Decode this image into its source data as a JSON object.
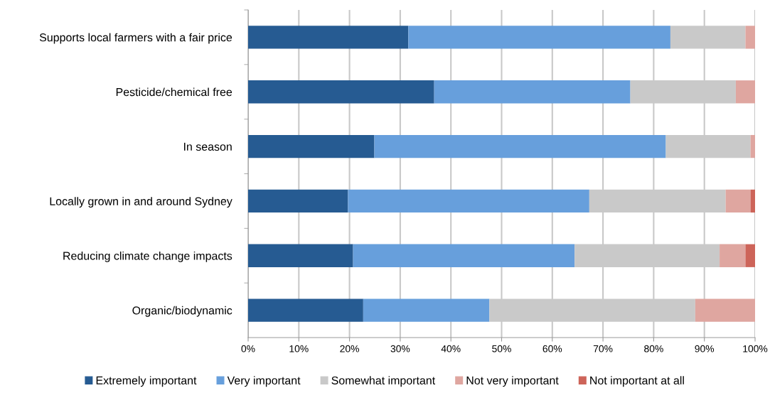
{
  "chart_data": {
    "type": "bar",
    "orientation": "horizontal",
    "stacked": true,
    "categories": [
      "Supports local farmers with a fair price",
      "Pesticide/chemical free",
      "In season",
      "Locally grown in and around Sydney",
      "Reducing climate change impacts",
      "Organic/biodynamic"
    ],
    "series": [
      {
        "name": "Extremely important",
        "color": "#265b92",
        "values": [
          31.6,
          36.7,
          24.9,
          19.7,
          20.7,
          22.7
        ]
      },
      {
        "name": "Very important",
        "color": "#679fdc",
        "values": [
          51.7,
          38.7,
          57.5,
          47.6,
          43.7,
          24.9
        ]
      },
      {
        "name": "Somewhat important",
        "color": "#c9c9c9",
        "values": [
          14.8,
          20.8,
          16.7,
          26.9,
          28.6,
          40.6
        ]
      },
      {
        "name": "Not very important",
        "color": "#dfa6a0",
        "values": [
          1.9,
          3.8,
          0.9,
          4.9,
          5.1,
          11.8
        ]
      },
      {
        "name": "Not important at all",
        "color": "#cd6459",
        "values": [
          0,
          0,
          0,
          0.9,
          1.9,
          0
        ]
      }
    ],
    "xlim": [
      0,
      100
    ],
    "xticks": [
      {
        "value": 0,
        "label": "0%"
      },
      {
        "value": 10,
        "label": "10%"
      },
      {
        "value": 20,
        "label": "20%"
      },
      {
        "value": 30,
        "label": "30%"
      },
      {
        "value": 40,
        "label": "40%"
      },
      {
        "value": 50,
        "label": "50%"
      },
      {
        "value": 60,
        "label": "60%"
      },
      {
        "value": 70,
        "label": "70%"
      },
      {
        "value": 80,
        "label": "80%"
      },
      {
        "value": 90,
        "label": "90%"
      },
      {
        "value": 100,
        "label": "100%"
      }
    ],
    "grid": "x",
    "legend": "bottom"
  }
}
